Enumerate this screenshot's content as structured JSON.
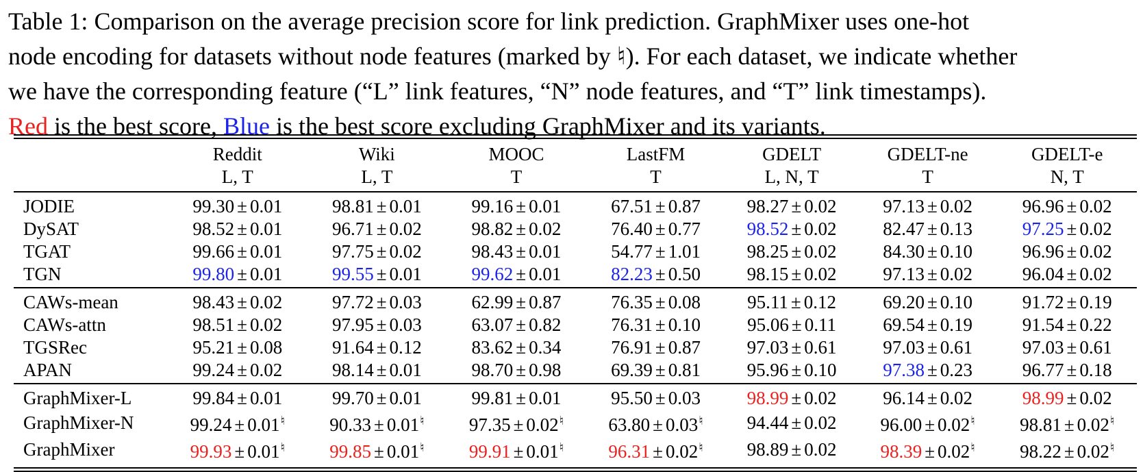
{
  "caption": {
    "line1": "Table 1: Comparison on the average precision score for link prediction. GraphMixer uses one-hot",
    "line2": "node encoding for datasets without node features (marked by ♮). For each dataset, we indicate whether",
    "line3": "we have the corresponding feature (“L” link features, “N” node features, and “T” link timestamps).",
    "line4_red": "Red",
    "line4_mid": " is the best score, ",
    "line4_blue": "Blue",
    "line4_end": " is the best score excluding GraphMixer and its variants."
  },
  "colors": {
    "best": "#e8221f",
    "best_excluding": "#1a24e6"
  },
  "table": {
    "columns": [
      {
        "name": "Reddit",
        "features": "L, T"
      },
      {
        "name": "Wiki",
        "features": "L, T"
      },
      {
        "name": "MOOC",
        "features": "T"
      },
      {
        "name": "LastFM",
        "features": "T"
      },
      {
        "name": "GDELT",
        "features": "L, N, T"
      },
      {
        "name": "GDELT-ne",
        "features": "T"
      },
      {
        "name": "GDELT-e",
        "features": "N, T"
      }
    ],
    "groups": [
      {
        "rows": [
          {
            "method": "JODIE",
            "cells": [
              {
                "v": "99.30",
                "s": "0.01",
                "c": "",
                "n": false
              },
              {
                "v": "98.81",
                "s": "0.01",
                "c": "",
                "n": false
              },
              {
                "v": "99.16",
                "s": "0.01",
                "c": "",
                "n": false
              },
              {
                "v": "67.51",
                "s": "0.87",
                "c": "",
                "n": false
              },
              {
                "v": "98.27",
                "s": "0.02",
                "c": "",
                "n": false
              },
              {
                "v": "97.13",
                "s": "0.02",
                "c": "",
                "n": false
              },
              {
                "v": "96.96",
                "s": "0.02",
                "c": "",
                "n": false
              }
            ]
          },
          {
            "method": "DySAT",
            "cells": [
              {
                "v": "98.52",
                "s": "0.01",
                "c": "",
                "n": false
              },
              {
                "v": "96.71",
                "s": "0.02",
                "c": "",
                "n": false
              },
              {
                "v": "98.82",
                "s": "0.02",
                "c": "",
                "n": false
              },
              {
                "v": "76.40",
                "s": "0.77",
                "c": "",
                "n": false
              },
              {
                "v": "98.52",
                "s": "0.02",
                "c": "blue",
                "n": false
              },
              {
                "v": "82.47",
                "s": "0.13",
                "c": "",
                "n": false
              },
              {
                "v": "97.25",
                "s": "0.02",
                "c": "blue",
                "n": false
              }
            ]
          },
          {
            "method": "TGAT",
            "cells": [
              {
                "v": "99.66",
                "s": "0.01",
                "c": "",
                "n": false
              },
              {
                "v": "97.75",
                "s": "0.02",
                "c": "",
                "n": false
              },
              {
                "v": "98.43",
                "s": "0.01",
                "c": "",
                "n": false
              },
              {
                "v": "54.77",
                "s": "1.01",
                "c": "",
                "n": false
              },
              {
                "v": "98.25",
                "s": "0.02",
                "c": "",
                "n": false
              },
              {
                "v": "84.30",
                "s": "0.10",
                "c": "",
                "n": false
              },
              {
                "v": "96.96",
                "s": "0.02",
                "c": "",
                "n": false
              }
            ]
          },
          {
            "method": "TGN",
            "cells": [
              {
                "v": "99.80",
                "s": "0.01",
                "c": "blue",
                "n": false
              },
              {
                "v": "99.55",
                "s": "0.01",
                "c": "blue",
                "n": false
              },
              {
                "v": "99.62",
                "s": "0.01",
                "c": "blue",
                "n": false
              },
              {
                "v": "82.23",
                "s": "0.50",
                "c": "blue",
                "n": false
              },
              {
                "v": "98.15",
                "s": "0.02",
                "c": "",
                "n": false
              },
              {
                "v": "97.13",
                "s": "0.02",
                "c": "",
                "n": false
              },
              {
                "v": "96.04",
                "s": "0.02",
                "c": "",
                "n": false
              }
            ]
          }
        ]
      },
      {
        "rows": [
          {
            "method": "CAWs-mean",
            "cells": [
              {
                "v": "98.43",
                "s": "0.02",
                "c": "",
                "n": false
              },
              {
                "v": "97.72",
                "s": "0.03",
                "c": "",
                "n": false
              },
              {
                "v": "62.99",
                "s": "0.87",
                "c": "",
                "n": false
              },
              {
                "v": "76.35",
                "s": "0.08",
                "c": "",
                "n": false
              },
              {
                "v": "95.11",
                "s": "0.12",
                "c": "",
                "n": false
              },
              {
                "v": "69.20",
                "s": "0.10",
                "c": "",
                "n": false
              },
              {
                "v": "91.72",
                "s": "0.19",
                "c": "",
                "n": false
              }
            ]
          },
          {
            "method": "CAWs-attn",
            "cells": [
              {
                "v": "98.51",
                "s": "0.02",
                "c": "",
                "n": false
              },
              {
                "v": "97.95",
                "s": "0.03",
                "c": "",
                "n": false
              },
              {
                "v": "63.07",
                "s": "0.82",
                "c": "",
                "n": false
              },
              {
                "v": "76.31",
                "s": "0.10",
                "c": "",
                "n": false
              },
              {
                "v": "95.06",
                "s": "0.11",
                "c": "",
                "n": false
              },
              {
                "v": "69.54",
                "s": "0.19",
                "c": "",
                "n": false
              },
              {
                "v": "91.54",
                "s": "0.22",
                "c": "",
                "n": false
              }
            ]
          },
          {
            "method": "TGSRec",
            "cells": [
              {
                "v": "95.21",
                "s": "0.08",
                "c": "",
                "n": false
              },
              {
                "v": "91.64",
                "s": "0.12",
                "c": "",
                "n": false
              },
              {
                "v": "83.62",
                "s": "0.34",
                "c": "",
                "n": false
              },
              {
                "v": "76.91",
                "s": "0.87",
                "c": "",
                "n": false
              },
              {
                "v": "97.03",
                "s": "0.61",
                "c": "",
                "n": false
              },
              {
                "v": "97.03",
                "s": "0.61",
                "c": "",
                "n": false
              },
              {
                "v": "97.03",
                "s": "0.61",
                "c": "",
                "n": false
              }
            ]
          },
          {
            "method": "APAN",
            "cells": [
              {
                "v": "99.24",
                "s": "0.02",
                "c": "",
                "n": false
              },
              {
                "v": "98.14",
                "s": "0.01",
                "c": "",
                "n": false
              },
              {
                "v": "98.70",
                "s": "0.98",
                "c": "",
                "n": false
              },
              {
                "v": "69.39",
                "s": "0.81",
                "c": "",
                "n": false
              },
              {
                "v": "95.96",
                "s": "0.10",
                "c": "",
                "n": false
              },
              {
                "v": "97.38",
                "s": "0.23",
                "c": "blue",
                "n": false
              },
              {
                "v": "96.77",
                "s": "0.18",
                "c": "",
                "n": false
              }
            ]
          }
        ]
      },
      {
        "rows": [
          {
            "method": "GraphMixer-L",
            "cells": [
              {
                "v": "99.84",
                "s": "0.01",
                "c": "",
                "n": false
              },
              {
                "v": "99.70",
                "s": "0.01",
                "c": "",
                "n": false
              },
              {
                "v": "99.81",
                "s": "0.01",
                "c": "",
                "n": false
              },
              {
                "v": "95.50",
                "s": "0.03",
                "c": "",
                "n": false
              },
              {
                "v": "98.99",
                "s": "0.02",
                "c": "red",
                "n": false
              },
              {
                "v": "96.14",
                "s": "0.02",
                "c": "",
                "n": false
              },
              {
                "v": "98.99",
                "s": "0.02",
                "c": "red",
                "n": false
              }
            ]
          },
          {
            "method": "GraphMixer-N",
            "cells": [
              {
                "v": "99.24",
                "s": "0.01",
                "c": "",
                "n": true
              },
              {
                "v": "90.33",
                "s": "0.01",
                "c": "",
                "n": true
              },
              {
                "v": "97.35",
                "s": "0.02",
                "c": "",
                "n": true
              },
              {
                "v": "63.80",
                "s": "0.03",
                "c": "",
                "n": true
              },
              {
                "v": "94.44",
                "s": "0.02",
                "c": "",
                "n": false
              },
              {
                "v": "96.00",
                "s": "0.02",
                "c": "",
                "n": true
              },
              {
                "v": "98.81",
                "s": "0.02",
                "c": "",
                "n": true
              }
            ]
          },
          {
            "method": "GraphMixer",
            "cells": [
              {
                "v": "99.93",
                "s": "0.01",
                "c": "red",
                "n": true
              },
              {
                "v": "99.85",
                "s": "0.01",
                "c": "red",
                "n": true
              },
              {
                "v": "99.91",
                "s": "0.01",
                "c": "red",
                "n": true
              },
              {
                "v": "96.31",
                "s": "0.02",
                "c": "red",
                "n": true
              },
              {
                "v": "98.89",
                "s": "0.02",
                "c": "",
                "n": false
              },
              {
                "v": "98.39",
                "s": "0.02",
                "c": "red",
                "n": true
              },
              {
                "v": "98.22",
                "s": "0.02",
                "c": "",
                "n": true
              }
            ]
          }
        ]
      }
    ],
    "pm_symbol": "±",
    "natural_symbol": "♮"
  }
}
